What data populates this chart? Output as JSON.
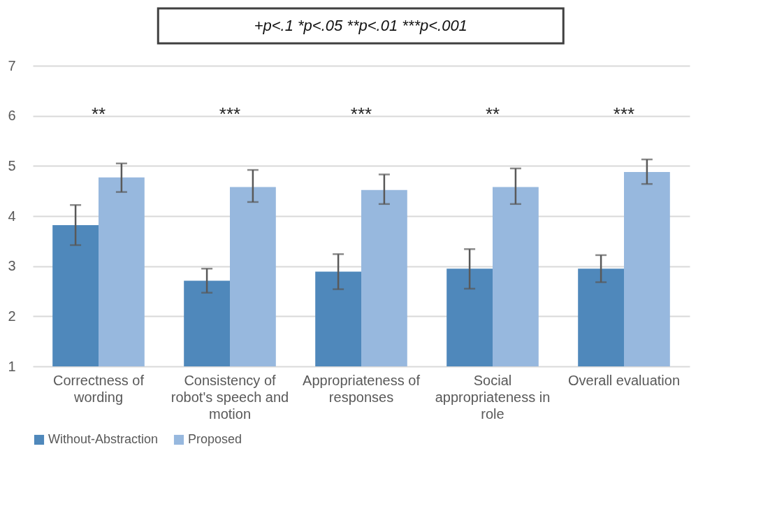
{
  "chart_data": {
    "type": "bar",
    "categories": [
      "Correctness of wording",
      "Consistency of robot's speech and motion",
      "Appropriateness of responses",
      "Social appropriateness in role",
      "Overall evaluation"
    ],
    "series": [
      {
        "name": "Without-Abstraction",
        "color": "#4f88bb",
        "values": [
          3.82,
          2.71,
          2.89,
          2.95,
          2.95
        ],
        "errors": [
          [
            3.42,
            4.22
          ],
          [
            2.47,
            2.95
          ],
          [
            2.54,
            3.24
          ],
          [
            2.55,
            3.34
          ],
          [
            2.68,
            3.22
          ]
        ]
      },
      {
        "name": "Proposed",
        "color": "#97b8de",
        "values": [
          4.77,
          4.58,
          4.52,
          4.58,
          4.88
        ],
        "errors": [
          [
            4.48,
            5.05
          ],
          [
            4.28,
            4.92
          ],
          [
            4.24,
            4.83
          ],
          [
            4.24,
            4.95
          ],
          [
            4.64,
            5.13
          ]
        ]
      }
    ],
    "ylim": [
      1,
      7
    ],
    "yticks": [
      1,
      2,
      3,
      4,
      5,
      6,
      7
    ],
    "grid": "y",
    "legend": "bottom",
    "annotations": [
      "+p<.1    *p<.05    **p<.01    ***p<.001",
      "**",
      "***",
      "***",
      "**",
      "***"
    ]
  }
}
